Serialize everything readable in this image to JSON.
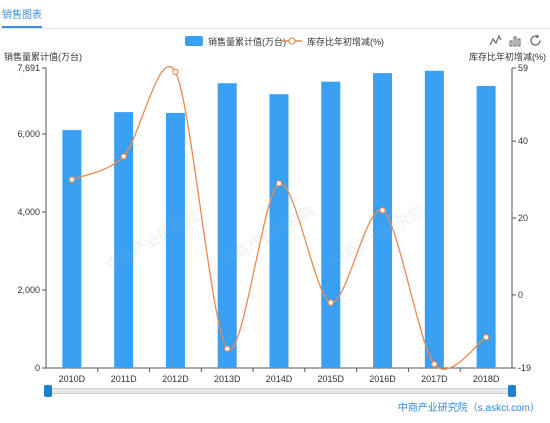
{
  "tab": {
    "label": "销售图表"
  },
  "legend": {
    "bar_label": "销售量累计值(万台)",
    "line_label": "库存比年初增减(%)"
  },
  "axes": {
    "left_name": "销售量累计值(万台)",
    "right_name": "库存比年初增减(%)"
  },
  "source": "中商产业研究院（s.askci.com）",
  "watermark": "中商产业研究院",
  "toolbox": [
    "line-chart-icon",
    "bar-chart-icon",
    "restore-icon"
  ],
  "colors": {
    "bar": "#3aa0f3",
    "line": "#e88a54",
    "accent": "#3a90d8"
  },
  "chart_data": {
    "type": "bar",
    "categories": [
      "2010D",
      "2011D",
      "2012D",
      "2013D",
      "2014D",
      "2015D",
      "2016D",
      "2017D",
      "2018D"
    ],
    "series": [
      {
        "name": "销售量累计值(万台)",
        "type": "bar",
        "axis": "left",
        "values": [
          6100,
          6560,
          6540,
          7300,
          7020,
          7340,
          7560,
          7620,
          7230
        ]
      },
      {
        "name": "库存比年初增减(%)",
        "type": "line",
        "axis": "right",
        "values": [
          30,
          36,
          58,
          -14,
          29,
          -2,
          22,
          -18,
          -11
        ]
      }
    ],
    "y_left": {
      "min": 0,
      "max": 7691,
      "ticks": [
        "0",
        "2,000",
        "4,000",
        "6,000",
        "7,691"
      ]
    },
    "y_right": {
      "min": -19,
      "max": 59,
      "ticks": [
        "-19",
        "0",
        "20",
        "40",
        "59"
      ]
    },
    "grid": false,
    "legend_position": "top-center"
  }
}
